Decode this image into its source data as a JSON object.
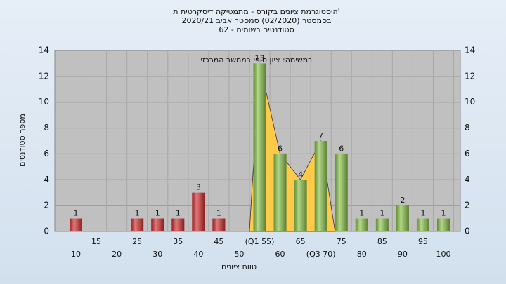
{
  "chart_data": {
    "type": "bar",
    "title": "היסטוגרמת ציונים בקורס - מתמטיקה דיסקרטית ת'",
    "subtitle": "בסמסטר (02/2020) סמסטר אביב 2020/21",
    "subtitle2": "סטודנטים רשומים - 62",
    "annotation": "במשימה: ציון סופי במחשב המרכזי",
    "xlabel": "טווח ציונים",
    "ylabel": "מספר סטודנטים",
    "categories": [
      "10",
      "15",
      "20",
      "25",
      "30",
      "35",
      "40",
      "45",
      "50",
      "(Q1 55)",
      "60",
      "65",
      "(Q3 70)",
      "75",
      "80",
      "85",
      "90",
      "95",
      "100"
    ],
    "values": [
      1,
      0,
      0,
      1,
      1,
      1,
      3,
      1,
      0,
      13,
      6,
      4,
      7,
      6,
      1,
      1,
      2,
      1,
      1
    ],
    "colors": [
      "#d32f2f",
      "#d32f2f",
      "#d32f2f",
      "#d32f2f",
      "#d32f2f",
      "#d32f2f",
      "#d32f2f",
      "#d32f2f",
      "#d32f2f",
      "#8bc34a",
      "#8bc34a",
      "#8bc34a",
      "#8bc34a",
      "#8bc34a",
      "#8bc34a",
      "#8bc34a",
      "#8bc34a",
      "#8bc34a",
      "#8bc34a"
    ],
    "highlight_color": "#ffc94a",
    "ylim": [
      0,
      14
    ],
    "yticks": [
      0,
      2,
      4,
      6,
      8,
      10,
      12,
      14
    ],
    "grid": true
  }
}
